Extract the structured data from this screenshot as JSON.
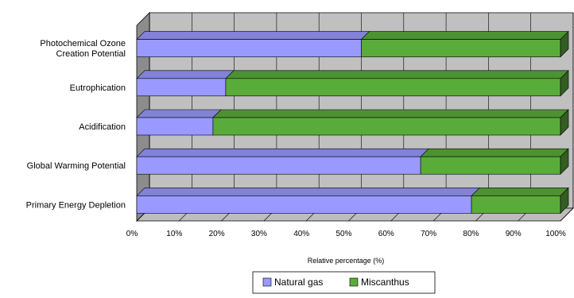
{
  "chart_data": {
    "type": "bar",
    "orientation": "horizontal",
    "stacked": "percent",
    "three_d": true,
    "categories": [
      [
        "Photochemical Ozone",
        "Creation Potential"
      ],
      [
        "Eutrophication"
      ],
      [
        "Acidification"
      ],
      [
        "Global Warming Potential"
      ],
      [
        "Primary Energy Depletion"
      ]
    ],
    "series": [
      {
        "name": "Natural gas",
        "color": "#9999ff",
        "values": [
          53,
          21,
          18,
          67,
          79
        ]
      },
      {
        "name": "Miscanthus",
        "color": "#5aac3a",
        "values": [
          47,
          79,
          82,
          33,
          21
        ]
      }
    ],
    "xlabel": "Relative percentage (%)",
    "xlim": [
      0,
      100
    ],
    "xticks": [
      "0%",
      "10%",
      "20%",
      "30%",
      "40%",
      "50%",
      "60%",
      "70%",
      "80%",
      "90%",
      "100%"
    ],
    "grid": true,
    "legend_position": "bottom"
  }
}
